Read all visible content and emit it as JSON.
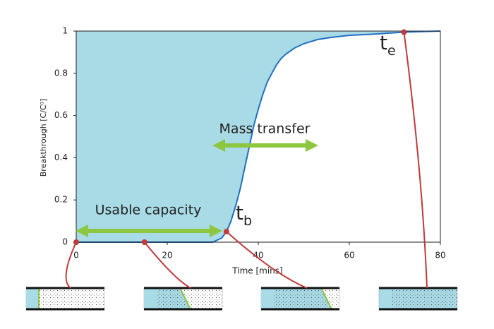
{
  "chart_data": {
    "type": "line",
    "xlabel": "Time [mins]",
    "ylabel": "Breakthrough [C/C⁰]",
    "x": [
      0,
      10,
      20,
      30,
      32,
      33,
      34,
      35,
      36,
      37,
      38,
      39,
      40,
      41,
      42,
      43,
      44,
      45,
      46,
      48,
      50,
      53,
      56,
      60,
      65,
      72,
      80
    ],
    "series": [
      {
        "color": "#1f6fc0",
        "fill": "#a8dbe6",
        "values": [
          0,
          0,
          0,
          0,
          0.02,
          0.05,
          0.1,
          0.17,
          0.25,
          0.35,
          0.45,
          0.55,
          0.63,
          0.7,
          0.76,
          0.8,
          0.84,
          0.87,
          0.89,
          0.92,
          0.94,
          0.96,
          0.97,
          0.98,
          0.985,
          0.995,
          1
        ]
      }
    ],
    "markers": {
      "color": "#c0393b",
      "x": [
        0,
        15,
        33,
        72
      ],
      "values": [
        0,
        0,
        0.05,
        0.995
      ]
    },
    "xlim": [
      0,
      80
    ],
    "xticks": [
      0,
      20,
      40,
      60,
      80
    ],
    "ylim": [
      0,
      1
    ],
    "yticks": [
      0,
      0.2,
      0.4,
      0.6,
      0.8,
      1
    ],
    "annotations": [
      {
        "text": "Mass transfer"
      },
      {
        "text": "Usable capacity"
      },
      {
        "text": "t",
        "subscript": "b"
      },
      {
        "text": "t",
        "subscript": "e"
      }
    ]
  }
}
